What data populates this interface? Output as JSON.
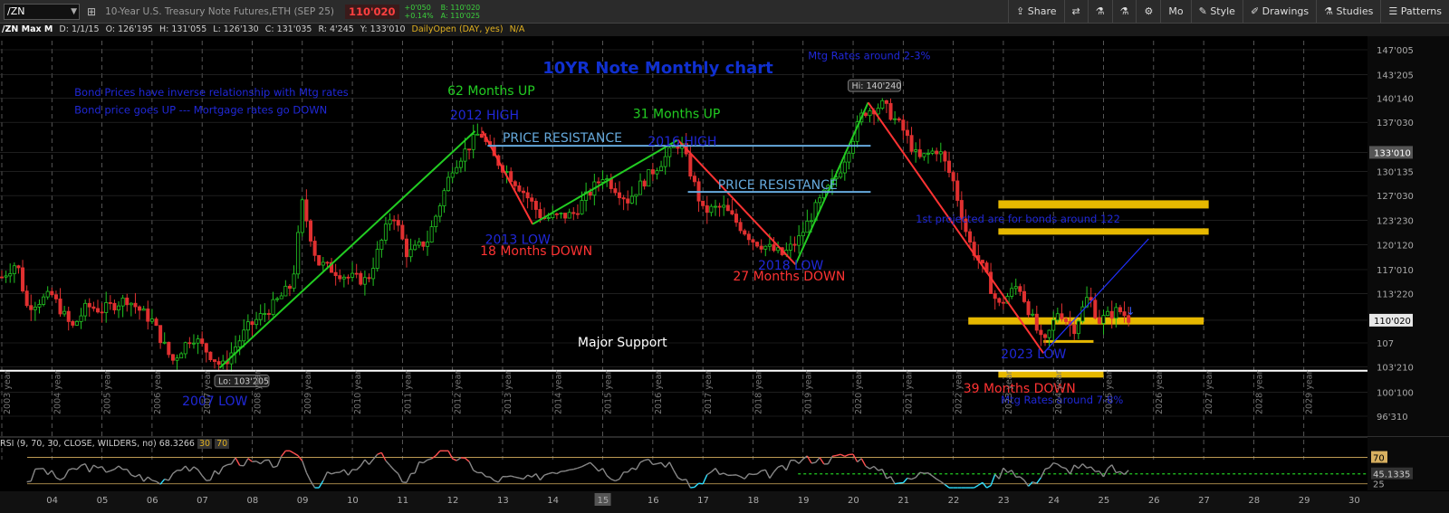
{
  "toolbar": {
    "symbol": "/ZN",
    "description": "10-Year U.S. Treasury Note Futures,ETH (SEP 25)",
    "last_price": "110'020",
    "change": "+0'050",
    "change_pct": "+0.14%",
    "bid": "B: 110'020",
    "ask": "A: 110'025",
    "buttons": [
      "Share",
      "Mo",
      "Style",
      "Drawings",
      "Studies",
      "Patterns"
    ]
  },
  "infobar": {
    "symbol": "/ZN Max M",
    "date": "D: 1/1/15",
    "open": "O: 126'195",
    "high": "H: 131'055",
    "low": "L: 126'130",
    "close": "C: 131'035",
    "range": "R: 4'245",
    "y": "Y: 133'010",
    "study": "DailyOpen (DAY, yes)",
    "na": "N/A"
  },
  "rsi": {
    "label": "RSI (9, 70, 30, CLOSE, WILDERS, no)",
    "value": "68.3266",
    "ob": "30",
    "os": "70",
    "axis_labels": [
      "70",
      "45.1335",
      "25"
    ]
  },
  "chart_data": {
    "type": "candlestick",
    "title": "10YR Note Monthly chart",
    "price_axis": [
      "147'005",
      "143'205",
      "140'140",
      "137'030",
      "133'010",
      "130'135",
      "127'030",
      "123'230",
      "120'120",
      "117'010",
      "113'220",
      "110'020",
      "107",
      "103'210",
      "100'100",
      "96'310"
    ],
    "price_axis_values": [
      147.0,
      143.6,
      140.4,
      137.1,
      133.0,
      130.4,
      127.1,
      123.7,
      120.4,
      117.0,
      113.7,
      110.1,
      107.0,
      103.7,
      100.3,
      97.0
    ],
    "current_price_label": "110'020",
    "y_label_133": "133'010",
    "year_labels": [
      "2003 year",
      "2004 year",
      "2005 year",
      "2006 year",
      "2007 year",
      "2008 year",
      "2009 year",
      "2010 year",
      "2011 year",
      "2012 year",
      "2013 year",
      "2014 year",
      "2015 year",
      "2016 year",
      "2017 year",
      "2018 year",
      "2019 year",
      "2020 year",
      "2021 year",
      "2022 year",
      "2023 year",
      "2024 year",
      "2025 year",
      "2026 year",
      "2027 year",
      "2028 year",
      "2029 year"
    ],
    "bottom_axis": [
      "04",
      "05",
      "06",
      "07",
      "08",
      "09",
      "10",
      "11",
      "12",
      "13",
      "14",
      "15",
      "16",
      "17",
      "18",
      "19",
      "20",
      "21",
      "22",
      "23",
      "24",
      "25",
      "26",
      "27",
      "28",
      "29",
      "30"
    ],
    "hi_label": "Hi: 140'240",
    "lo_label": "Lo: 103'205",
    "annotations": {
      "inverse1": "Bond Prices have inverse relationship with Mtg rates",
      "inverse2": "Bond price goes UP --- Mortgage rates go DOWN",
      "up62": "62 Months UP",
      "high2012": "2012 HIGH",
      "up31": "31 Months UP",
      "high2016": "2016 HIGH",
      "res1": "PRICE RESISTANCE",
      "res2": "PRICE RESISTANCE",
      "mtg23": "Mtg Rates around 2-3%",
      "low2013": "2013 LOW",
      "down18": "18 Months DOWN",
      "low2018": "2018 LOW",
      "down27": "27 Months DOWN",
      "proj": "1st projected are for bonds around 122",
      "support": "Major Support",
      "low2023": "2023 LOW",
      "down39": "39 Months DOWN",
      "mtg78": "Mtg Rates around 7-8%",
      "low2007": "2007 LOW"
    },
    "colors": {
      "up": "#22c422",
      "down": "#e03030",
      "trend_up": "#22cc22",
      "trend_down": "#ff3333",
      "resistance": "#66aadd",
      "zone": "#e6b800",
      "title": "#1030d0"
    }
  }
}
